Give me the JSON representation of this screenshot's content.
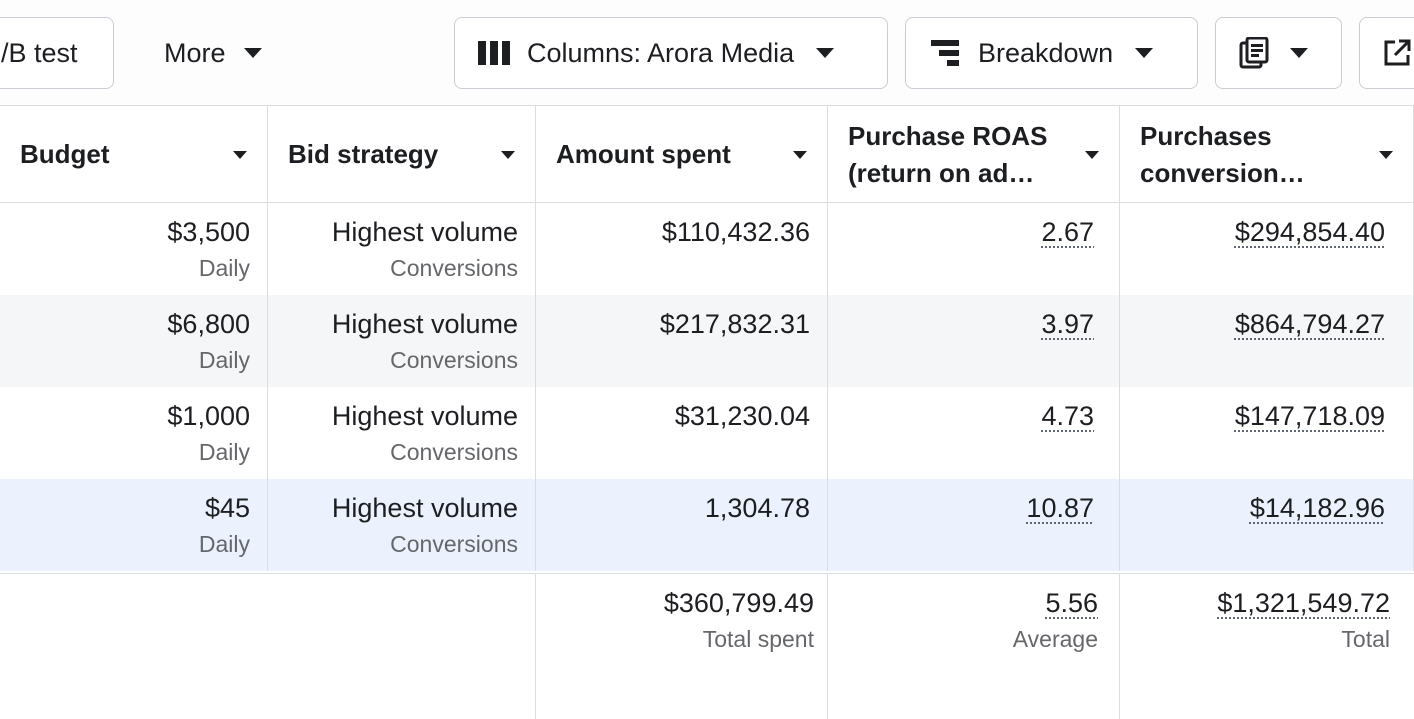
{
  "toolbar": {
    "ab_test_label": "/B test",
    "more_label": "More",
    "columns_label": "Columns: Arora Media",
    "breakdown_label": "Breakdown",
    "icons": [
      "columns-icon",
      "breakdown-icon",
      "reports-icon",
      "export-icon"
    ]
  },
  "table": {
    "headers": [
      {
        "line1": "Budget",
        "line2": ""
      },
      {
        "line1": "Bid strategy",
        "line2": ""
      },
      {
        "line1": "Amount spent",
        "line2": ""
      },
      {
        "line1": "Purchase ROAS",
        "line2": "(return on ad…"
      },
      {
        "line1": "Purchases",
        "line2": "conversion…"
      }
    ],
    "rows": [
      {
        "budget": "$3,500",
        "budget_period": "Daily",
        "bid_strategy": "Highest volume",
        "bid_goal": "Conversions",
        "amount_spent": "$110,432.36",
        "roas": "2.67",
        "conversion_value": "$294,854.40"
      },
      {
        "budget": "$6,800",
        "budget_period": "Daily",
        "bid_strategy": "Highest volume",
        "bid_goal": "Conversions",
        "amount_spent": "$217,832.31",
        "roas": "3.97",
        "conversion_value": "$864,794.27"
      },
      {
        "budget": "$1,000",
        "budget_period": "Daily",
        "bid_strategy": "Highest volume",
        "bid_goal": "Conversions",
        "amount_spent": "$31,230.04",
        "roas": "4.73",
        "conversion_value": "$147,718.09"
      },
      {
        "budget": "$45",
        "budget_period": "Daily",
        "bid_strategy": "Highest volume",
        "bid_goal": "Conversions",
        "amount_spent": "1,304.78",
        "roas": "10.87",
        "conversion_value": "$14,182.96"
      }
    ],
    "totals": {
      "amount_spent": "$360,799.49",
      "amount_spent_label": "Total spent",
      "roas": "5.56",
      "roas_label": "Average",
      "conversion_value": "$1,321,549.72",
      "conversion_value_label": "Total"
    }
  },
  "colors": {
    "row_alt": "#f5f6f8",
    "row_selected": "#ebf2fd",
    "border": "#dadde1",
    "muted_text": "#65676b"
  }
}
